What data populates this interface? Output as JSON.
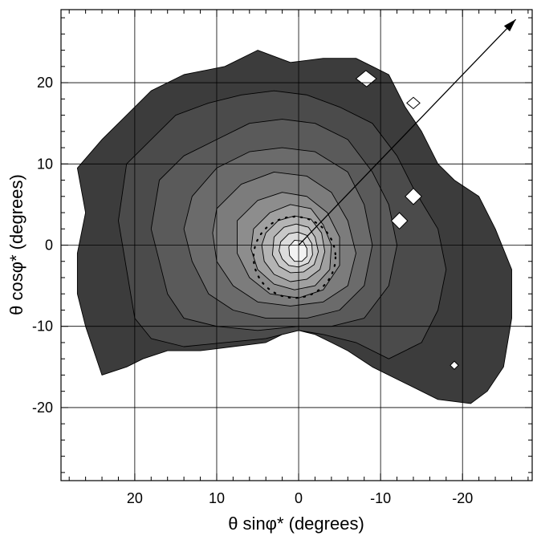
{
  "chart_data": {
    "type": "contour",
    "title": "",
    "xlabel": "θ sinφ* (degrees)",
    "ylabel": "θ cosφ* (degrees)",
    "x_reversed": true,
    "xlim": [
      29,
      -28.5
    ],
    "ylim": [
      -29,
      29
    ],
    "xticks": [
      20,
      10,
      0,
      -10,
      -20
    ],
    "xtick_labels": [
      "20",
      "10",
      "0",
      "-10",
      "-20"
    ],
    "yticks": [
      20,
      10,
      0,
      -10,
      -20
    ],
    "ytick_labels": [
      "20",
      "10",
      "0",
      "-10",
      "-20"
    ],
    "grid": true,
    "peak": [
      0,
      -1
    ],
    "contour_levels": [
      {
        "level": 1,
        "color": "#3c3c3c",
        "outline": [
          [
            27,
            9.5
          ],
          [
            24,
            13
          ],
          [
            21,
            16
          ],
          [
            18,
            19
          ],
          [
            14,
            21
          ],
          [
            9,
            22
          ],
          [
            5,
            24
          ],
          [
            1,
            22.5
          ],
          [
            -3,
            23
          ],
          [
            -7,
            23
          ],
          [
            -9,
            22
          ],
          [
            -11,
            21
          ],
          [
            -13,
            17
          ],
          [
            -15,
            14
          ],
          [
            -17,
            10
          ],
          [
            -19,
            8
          ],
          [
            -22,
            6
          ],
          [
            -24,
            2
          ],
          [
            -26,
            -3
          ],
          [
            -26,
            -9
          ],
          [
            -25,
            -15
          ],
          [
            -23,
            -18
          ],
          [
            -21,
            -19.5
          ],
          [
            -17,
            -19
          ],
          [
            -13,
            -17
          ],
          [
            -9,
            -15
          ],
          [
            -6,
            -13
          ],
          [
            -4,
            -12
          ],
          [
            -2,
            -11
          ],
          [
            0,
            -10.5
          ],
          [
            2,
            -11
          ],
          [
            4,
            -12
          ],
          [
            8,
            -12.5
          ],
          [
            12,
            -13
          ],
          [
            16,
            -13
          ],
          [
            19,
            -14
          ],
          [
            21,
            -15
          ],
          [
            24,
            -16
          ],
          [
            26,
            -10
          ],
          [
            27,
            -6
          ],
          [
            27,
            -1
          ],
          [
            26,
            4
          ],
          [
            27,
            9.5
          ]
        ]
      },
      {
        "level": 2,
        "color": "#4b4b4b",
        "outline": [
          [
            21,
            10
          ],
          [
            18,
            13
          ],
          [
            15,
            16
          ],
          [
            11,
            17.5
          ],
          [
            7,
            18.5
          ],
          [
            3,
            19
          ],
          [
            -1,
            18.5
          ],
          [
            -5,
            17
          ],
          [
            -9,
            15
          ],
          [
            -12,
            11
          ],
          [
            -14,
            7
          ],
          [
            -17,
            2
          ],
          [
            -18,
            -3
          ],
          [
            -17,
            -8
          ],
          [
            -15,
            -12
          ],
          [
            -11,
            -14
          ],
          [
            -7,
            -12
          ],
          [
            -3,
            -11
          ],
          [
            0,
            -10.5
          ],
          [
            4,
            -11.5
          ],
          [
            9,
            -12
          ],
          [
            14,
            -12.5
          ],
          [
            18,
            -11.5
          ],
          [
            20,
            -9
          ],
          [
            21,
            -3
          ],
          [
            22,
            3
          ],
          [
            21,
            10
          ]
        ]
      },
      {
        "level": 3,
        "color": "#5a5a5a",
        "outline": [
          [
            17,
            8
          ],
          [
            14,
            11
          ],
          [
            10,
            13
          ],
          [
            6,
            15
          ],
          [
            2,
            15.5
          ],
          [
            -2,
            15
          ],
          [
            -6,
            13
          ],
          [
            -9,
            9
          ],
          [
            -11,
            5
          ],
          [
            -12,
            0
          ],
          [
            -11,
            -5
          ],
          [
            -8,
            -9
          ],
          [
            -4,
            -10
          ],
          [
            0,
            -10
          ],
          [
            5,
            -10.5
          ],
          [
            10,
            -10
          ],
          [
            14,
            -9
          ],
          [
            16,
            -6
          ],
          [
            17,
            -2
          ],
          [
            18,
            2
          ],
          [
            17,
            8
          ]
        ]
      },
      {
        "level": 4,
        "color": "#6b6b6b",
        "outline": [
          [
            13,
            6
          ],
          [
            10,
            9.5
          ],
          [
            6,
            11.5
          ],
          [
            2,
            12
          ],
          [
            -2,
            11.5
          ],
          [
            -6,
            9
          ],
          [
            -8,
            5
          ],
          [
            -9,
            0
          ],
          [
            -8,
            -5
          ],
          [
            -5,
            -8
          ],
          [
            -1,
            -9
          ],
          [
            4,
            -9
          ],
          [
            8,
            -8
          ],
          [
            11,
            -6
          ],
          [
            13,
            -2
          ],
          [
            14,
            2
          ],
          [
            13,
            6
          ]
        ]
      },
      {
        "level": 5,
        "color": "#7c7c7c",
        "outline": [
          [
            10,
            4.5
          ],
          [
            7,
            7.5
          ],
          [
            3,
            9
          ],
          [
            -1,
            8.5
          ],
          [
            -4,
            6.5
          ],
          [
            -6,
            3
          ],
          [
            -7,
            -1
          ],
          [
            -6,
            -5
          ],
          [
            -3,
            -7
          ],
          [
            1,
            -7.5
          ],
          [
            5,
            -7
          ],
          [
            8,
            -5
          ],
          [
            10,
            -2
          ],
          [
            10.5,
            1.5
          ],
          [
            10,
            4.5
          ]
        ]
      },
      {
        "level": 6,
        "color": "#8d8d8d",
        "outline": [
          [
            7.5,
            3
          ],
          [
            5,
            5.5
          ],
          [
            2,
            6.5
          ],
          [
            -1,
            6
          ],
          [
            -3.5,
            4
          ],
          [
            -5,
            1
          ],
          [
            -5,
            -2.5
          ],
          [
            -3,
            -5.5
          ],
          [
            0,
            -6.5
          ],
          [
            3.5,
            -6
          ],
          [
            6,
            -4
          ],
          [
            7.5,
            -1
          ],
          [
            7.5,
            3
          ]
        ]
      },
      {
        "level": 7,
        "color": "#a0a0a0",
        "outline": [
          [
            5.5,
            2
          ],
          [
            3.5,
            4
          ],
          [
            1,
            5
          ],
          [
            -1.5,
            4.5
          ],
          [
            -3,
            2.5
          ],
          [
            -4,
            0
          ],
          [
            -3.8,
            -3
          ],
          [
            -2,
            -5
          ],
          [
            0.5,
            -5.5
          ],
          [
            3,
            -4.8
          ],
          [
            5,
            -3
          ],
          [
            5.8,
            -0.5
          ],
          [
            5.5,
            2
          ]
        ]
      },
      {
        "level": 8,
        "color": "#b4b4b4",
        "outline": [
          [
            4,
            1.5
          ],
          [
            2.5,
            3
          ],
          [
            0.5,
            3.6
          ],
          [
            -1.5,
            3.2
          ],
          [
            -2.8,
            1.5
          ],
          [
            -3.2,
            -0.8
          ],
          [
            -2.6,
            -3
          ],
          [
            -1,
            -4.2
          ],
          [
            1,
            -4.5
          ],
          [
            3,
            -3.6
          ],
          [
            4.2,
            -2
          ],
          [
            4.5,
            0
          ],
          [
            4,
            1.5
          ]
        ]
      },
      {
        "level": 9,
        "color": "#c8c8c8",
        "outline": [
          [
            3,
            1
          ],
          [
            1.8,
            2.2
          ],
          [
            0.3,
            2.6
          ],
          [
            -1.2,
            2.2
          ],
          [
            -2,
            1
          ],
          [
            -2.4,
            -0.8
          ],
          [
            -1.9,
            -2.4
          ],
          [
            -0.6,
            -3.3
          ],
          [
            1,
            -3.4
          ],
          [
            2.4,
            -2.6
          ],
          [
            3.2,
            -1.2
          ],
          [
            3,
            1
          ]
        ]
      },
      {
        "level": 10,
        "color": "#dcdcdc",
        "outline": [
          [
            2.2,
            0.4
          ],
          [
            1.2,
            1.4
          ],
          [
            0.1,
            1.6
          ],
          [
            -1,
            1.2
          ],
          [
            -1.6,
            0.2
          ],
          [
            -1.7,
            -1.2
          ],
          [
            -1.2,
            -2.2
          ],
          [
            0,
            -2.7
          ],
          [
            1.2,
            -2.5
          ],
          [
            2,
            -1.7
          ],
          [
            2.4,
            -0.7
          ],
          [
            2.2,
            0.4
          ]
        ]
      },
      {
        "level": 11,
        "color": "#f2f2f2",
        "outline": [
          [
            1.2,
            -0.2
          ],
          [
            0.5,
            0.6
          ],
          [
            -0.5,
            0.5
          ],
          [
            -1,
            -0.4
          ],
          [
            -1,
            -1.4
          ],
          [
            -0.4,
            -2
          ],
          [
            0.5,
            -2
          ],
          [
            1.1,
            -1.3
          ],
          [
            1.2,
            -0.2
          ]
        ]
      }
    ],
    "holes": [
      [
        [
          -7,
          20.5
        ],
        [
          -8.2,
          21.5
        ],
        [
          -9.5,
          20.5
        ],
        [
          -8.3,
          19.5
        ]
      ],
      [
        [
          -13.2,
          17.5
        ],
        [
          -14,
          18.2
        ],
        [
          -14.8,
          17.5
        ],
        [
          -14,
          16.8
        ]
      ],
      [
        [
          -13,
          6
        ],
        [
          -14,
          7
        ],
        [
          -15,
          6
        ],
        [
          -14,
          5
        ]
      ],
      [
        [
          -11.3,
          3
        ],
        [
          -12.3,
          4
        ],
        [
          -13.3,
          3
        ],
        [
          -12.3,
          2
        ]
      ],
      [
        [
          -18.5,
          -14.8
        ],
        [
          -19,
          -14.3
        ],
        [
          -19.5,
          -14.8
        ],
        [
          -19,
          -15.3
        ]
      ]
    ],
    "arrow": {
      "from": [
        0,
        0
      ],
      "to": [
        -26.5,
        27.8
      ]
    },
    "dotted_ring": {
      "center": [
        0.5,
        -1.5
      ],
      "radius": 5
    }
  }
}
